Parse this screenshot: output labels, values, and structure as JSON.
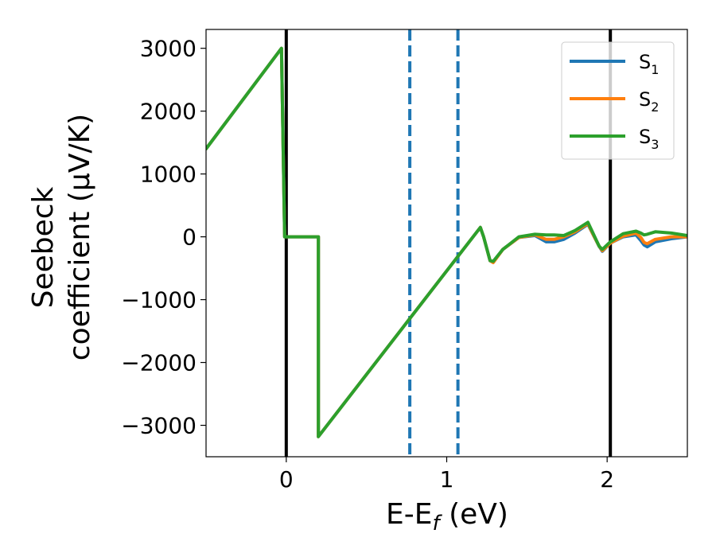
{
  "chart_data": {
    "type": "line",
    "xlabel_main": "E-E",
    "xlabel_sub": "f",
    "xlabel_unit": " (eV)",
    "ylabel_line1": "Seebeck",
    "ylabel_line2": "coefficient  (μV/K)",
    "xlim": [
      -0.5,
      2.5
    ],
    "ylim": [
      -3500,
      3300
    ],
    "xticks": [
      0,
      1,
      2
    ],
    "xtick_labels": [
      "0",
      "1",
      "2"
    ],
    "yticks": [
      3000,
      2000,
      1000,
      0,
      -1000,
      -2000,
      -3000
    ],
    "ytick_labels": [
      "3000",
      "2000",
      "1000",
      "0",
      "−1000",
      "−2000",
      "−3000"
    ],
    "grid": false,
    "legend_position": "top-right",
    "vlines": [
      {
        "x": 0.0,
        "style": "solid",
        "color": "#000000"
      },
      {
        "x": 2.02,
        "style": "solid",
        "color": "#000000"
      },
      {
        "x": 0.77,
        "style": "dashed",
        "color": "#1f77b4"
      },
      {
        "x": 1.07,
        "style": "dashed",
        "color": "#1f77b4"
      }
    ],
    "series": [
      {
        "name": "S1",
        "label_main": "S",
        "label_sub": "1",
        "color": "#1f77b4",
        "x": [
          -0.5,
          -0.03,
          -0.01,
          0.2,
          0.2,
          1.21,
          1.23,
          1.27,
          1.29,
          1.35,
          1.45,
          1.55,
          1.62,
          1.67,
          1.73,
          1.8,
          1.88,
          1.91,
          1.95,
          1.97,
          2.02,
          2.1,
          2.18,
          2.21,
          2.23,
          2.25,
          2.3,
          2.4,
          2.5
        ],
        "y": [
          1400,
          3000,
          0,
          0,
          -3180,
          150,
          0,
          -380,
          -400,
          -200,
          -10,
          20,
          -80,
          -80,
          -40,
          60,
          200,
          50,
          -150,
          -230,
          -100,
          0,
          30,
          -60,
          -130,
          -160,
          -80,
          -30,
          0
        ]
      },
      {
        "name": "S2",
        "label_main": "S",
        "label_sub": "2",
        "color": "#ff7f0e",
        "x": [
          -0.5,
          -0.03,
          -0.01,
          0.2,
          0.2,
          1.21,
          1.23,
          1.27,
          1.29,
          1.35,
          1.45,
          1.55,
          1.62,
          1.67,
          1.73,
          1.8,
          1.88,
          1.91,
          1.95,
          1.97,
          2.02,
          2.1,
          2.18,
          2.21,
          2.23,
          2.25,
          2.3,
          2.4,
          2.5
        ],
        "y": [
          1400,
          3000,
          0,
          0,
          -3180,
          150,
          0,
          -380,
          -410,
          -200,
          -10,
          30,
          -40,
          -40,
          0,
          80,
          210,
          50,
          -150,
          -220,
          -100,
          10,
          60,
          -10,
          -90,
          -110,
          -40,
          0,
          0
        ]
      },
      {
        "name": "S3",
        "label_main": "S",
        "label_sub": "3",
        "color": "#2ca02c",
        "x": [
          -0.5,
          -0.03,
          -0.01,
          0.2,
          0.2,
          1.21,
          1.23,
          1.27,
          1.29,
          1.35,
          1.45,
          1.55,
          1.62,
          1.67,
          1.73,
          1.8,
          1.88,
          1.91,
          1.95,
          1.97,
          2.02,
          2.1,
          2.18,
          2.21,
          2.23,
          2.25,
          2.3,
          2.4,
          2.5
        ],
        "y": [
          1400,
          3000,
          0,
          0,
          -3180,
          150,
          0,
          -380,
          -390,
          -200,
          0,
          40,
          30,
          30,
          20,
          100,
          230,
          70,
          -150,
          -200,
          -80,
          50,
          90,
          60,
          30,
          40,
          80,
          60,
          20
        ]
      }
    ]
  }
}
